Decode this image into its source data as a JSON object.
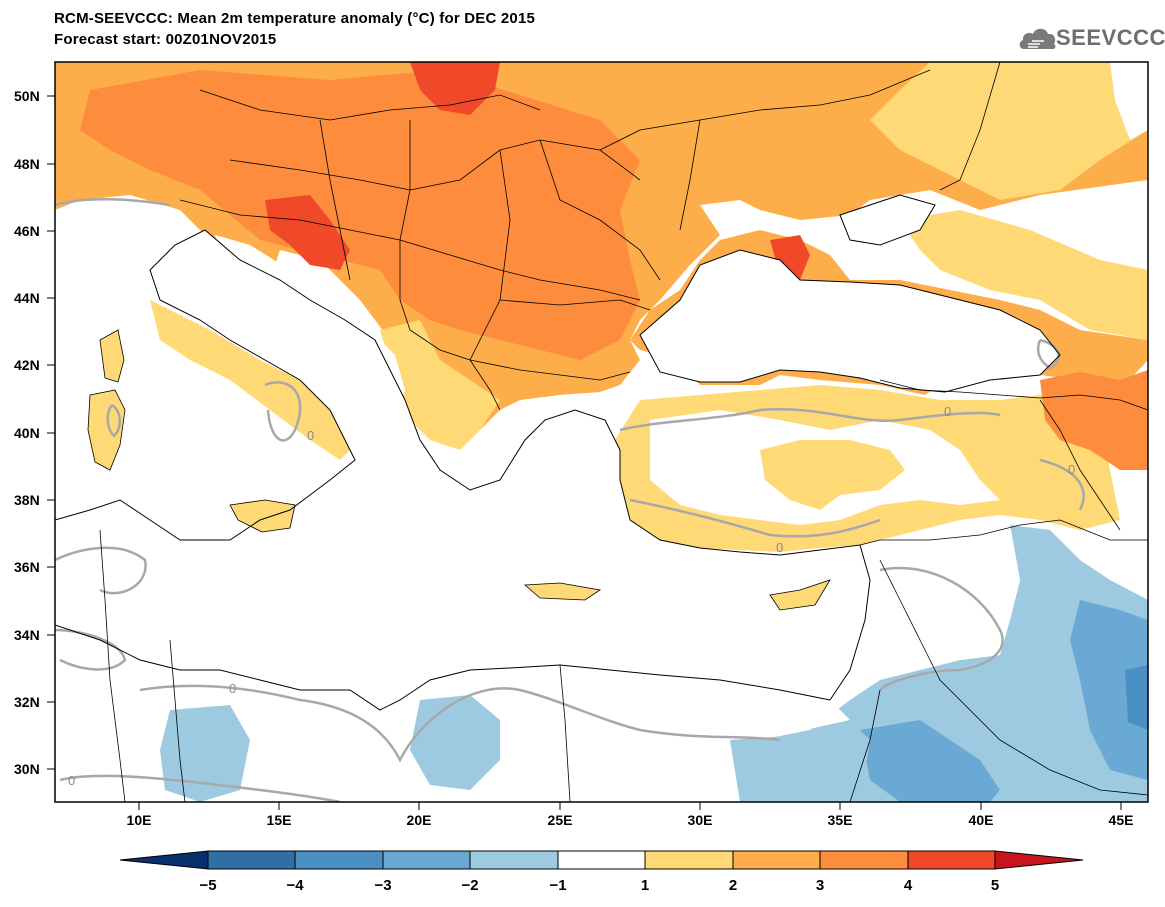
{
  "header": {
    "title": "RCM-SEEVCCC: Mean 2m temperature anomaly (°C) for DEC 2015",
    "subtitle": "Forecast start: 00Z01NOV2015",
    "logo_text": "SEEVCCC"
  },
  "map": {
    "lat_labels": [
      "50N",
      "48N",
      "46N",
      "44N",
      "42N",
      "40N",
      "38N",
      "36N",
      "34N",
      "32N",
      "30N"
    ],
    "lon_labels": [
      "10E",
      "15E",
      "20E",
      "25E",
      "30E",
      "35E",
      "40E",
      "45E"
    ],
    "contour_label": "0",
    "ocean_color": "#ffffff",
    "border_color": "#000000",
    "zero_contour_color": "#a8a8a8"
  },
  "colorbar": {
    "labels": [
      "−5",
      "−4",
      "−3",
      "−2",
      "−1",
      "1",
      "2",
      "3",
      "4",
      "5"
    ],
    "colors": [
      "#08306b",
      "#2f6fa6",
      "#4a90c4",
      "#6aa9d4",
      "#9ecae1",
      "#ffffff",
      "#fed976",
      "#fdae4b",
      "#fd8d3c",
      "#f0492a",
      "#c8141c"
    ]
  }
}
